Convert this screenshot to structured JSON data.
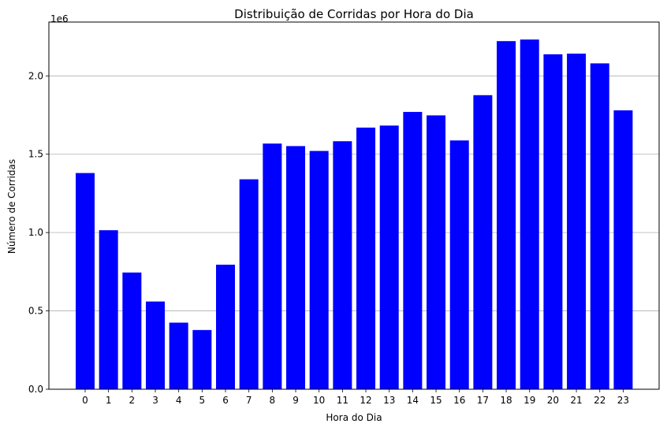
{
  "chart_data": {
    "type": "bar",
    "title": "Distribuição de Corridas por Hora do Dia",
    "xlabel": "Hora do Dia",
    "ylabel": "Número de Corridas",
    "y_offset_label": "1e6",
    "categories": [
      "0",
      "1",
      "2",
      "3",
      "4",
      "5",
      "6",
      "7",
      "8",
      "9",
      "10",
      "11",
      "12",
      "13",
      "14",
      "15",
      "16",
      "17",
      "18",
      "19",
      "20",
      "21",
      "22",
      "23"
    ],
    "values": [
      1380000,
      1015000,
      745000,
      560000,
      425000,
      378000,
      795000,
      1340000,
      1568000,
      1552000,
      1521000,
      1583000,
      1670000,
      1683000,
      1770000,
      1748000,
      1588000,
      1877000,
      2222000,
      2232000,
      2138000,
      2142000,
      2080000,
      1780000
    ],
    "y_ticks": [
      0,
      500000,
      1000000,
      1500000,
      2000000
    ],
    "y_tick_labels": [
      "0.0",
      "0.5",
      "1.0",
      "1.5",
      "2.0"
    ],
    "ylim": [
      0,
      2343600
    ],
    "bar_color": "#0000ff",
    "grid": "horizontal"
  }
}
